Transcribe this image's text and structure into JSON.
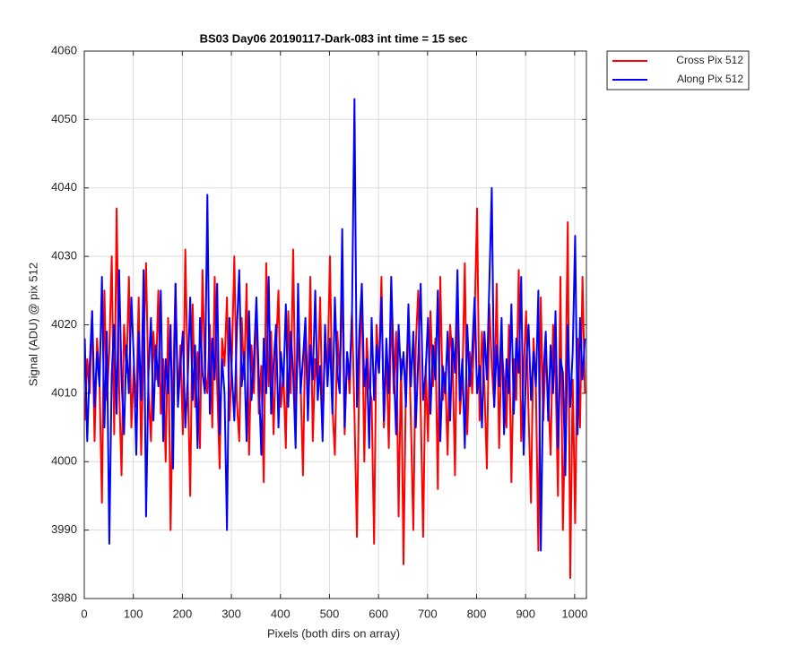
{
  "chart_data": {
    "type": "line",
    "title": "BS03 Day06 20190117-Dark-083 int time = 15 sec",
    "xlabel": "Pixels (both dirs on array)",
    "ylabel": "Signal (ADU) @ pix 512",
    "xlim": [
      0,
      1024
    ],
    "ylim": [
      3980,
      4060
    ],
    "xticks": [
      0,
      100,
      200,
      300,
      400,
      500,
      600,
      700,
      800,
      900,
      1000
    ],
    "yticks": [
      3980,
      3990,
      4000,
      4010,
      4020,
      4030,
      4040,
      4050,
      4060
    ],
    "grid": true,
    "legend": "northeastoutside",
    "x": [
      1,
      6,
      11,
      16,
      21,
      26,
      31,
      36,
      41,
      46,
      51,
      56,
      61,
      66,
      71,
      76,
      81,
      86,
      91,
      96,
      101,
      106,
      111,
      116,
      121,
      126,
      131,
      136,
      141,
      146,
      151,
      156,
      161,
      166,
      171,
      176,
      181,
      186,
      191,
      196,
      201,
      206,
      211,
      216,
      221,
      226,
      231,
      236,
      241,
      246,
      251,
      256,
      261,
      266,
      271,
      276,
      281,
      286,
      291,
      296,
      301,
      306,
      311,
      316,
      321,
      326,
      331,
      336,
      341,
      346,
      351,
      356,
      361,
      366,
      371,
      376,
      381,
      386,
      391,
      396,
      401,
      406,
      411,
      416,
      421,
      426,
      431,
      436,
      441,
      446,
      451,
      456,
      461,
      466,
      471,
      476,
      481,
      486,
      491,
      496,
      501,
      506,
      511,
      516,
      521,
      526,
      531,
      536,
      541,
      546,
      551,
      556,
      561,
      566,
      571,
      576,
      581,
      586,
      591,
      596,
      601,
      606,
      611,
      616,
      621,
      626,
      631,
      636,
      641,
      646,
      651,
      656,
      661,
      666,
      671,
      676,
      681,
      686,
      691,
      696,
      701,
      706,
      711,
      716,
      721,
      726,
      731,
      736,
      741,
      746,
      751,
      756,
      761,
      766,
      771,
      776,
      781,
      786,
      791,
      796,
      801,
      806,
      811,
      816,
      821,
      826,
      831,
      836,
      841,
      846,
      851,
      856,
      861,
      866,
      871,
      876,
      881,
      886,
      891,
      896,
      901,
      906,
      911,
      916,
      921,
      926,
      931,
      936,
      941,
      946,
      951,
      956,
      961,
      966,
      971,
      976,
      981,
      986,
      991,
      996,
      1001,
      1006,
      1011,
      1016,
      1021
    ],
    "series": [
      {
        "name": "Cross Pix 512",
        "color": "#ff0000",
        "values": [
          4006,
          4015,
          4010,
          4022,
          4003,
          4018,
          4012,
          3994,
          4025,
          4009,
          4016,
          4030,
          4004,
          4037,
          4011,
          3998,
          4020,
          4013,
          4027,
          4005,
          4014,
          4008,
          4024,
          4001,
          4017,
          4029,
          4010,
          4003,
          4019,
          4012,
          4025,
          4007,
          4015,
          4000,
          4021,
          3990,
          4011,
          4026,
          4009,
          4017,
          4004,
          4031,
          4012,
          3995,
          4023,
          4008,
          4016,
          4002,
          4028,
          4013,
          4010,
          4020,
          4005,
          4027,
          4011,
          3999,
          4018,
          4014,
          4024,
          4006,
          4015,
          4030,
          4009,
          4003,
          4021,
          4012,
          4026,
          4001,
          4017,
          4010,
          4023,
          4007,
          4014,
          3997,
          4029,
          4011,
          4019,
          4004,
          4016,
          4025,
          4008,
          4013,
          4002,
          4022,
          4010,
          4031,
          4006,
          4018,
          4012,
          3998,
          4020,
          4009,
          4027,
          4003,
          4015,
          4011,
          4024,
          4005,
          4017,
          4013,
          4030,
          4008,
          4001,
          4019,
          4012,
          4026,
          4004,
          4016,
          4010,
          4022,
          4007,
          3989,
          4014,
          4025,
          4000,
          4018,
          4011,
          4009,
          3988,
          4020,
          4013,
          4027,
          4005,
          4016,
          4002,
          4023,
          4010,
          4019,
          3992,
          4015,
          3985,
          4012,
          4021,
          4006,
          3990,
          4017,
          4025,
          4008,
          3989,
          4014,
          4003,
          4022,
          4011,
          4018,
          3996,
          4027,
          4009,
          4013,
          4001,
          4020,
          4015,
          3998,
          4024,
          4007,
          4012,
          4029,
          4004,
          4016,
          4010,
          4021,
          4037,
          4006,
          4019,
          4011,
          3999,
          4023,
          4014,
          4008,
          4026,
          4002,
          4017,
          4012,
          4005,
          4020,
          3997,
          4015,
          4009,
          4028,
          4003,
          4013,
          4022,
          4007,
          3994,
          4018,
          4011,
          3987,
          4024,
          4006,
          4016,
          4010,
          4001,
          4020,
          4013,
          3995,
          4027,
          3990,
          4008,
          4035,
          3983,
          4012,
          3991,
          4018,
          4005,
          4027,
          4010
        ]
      },
      {
        "name": "Along Pix 512",
        "color": "#0000ff",
        "values": [
          4018,
          4003,
          4014,
          4022,
          4008,
          4016,
          4011,
          4027,
          4005,
          4019,
          3988,
          4013,
          4020,
          4007,
          4028,
          4012,
          4004,
          4017,
          4010,
          4024,
          4015,
          4001,
          4019,
          4009,
          4028,
          3992,
          4013,
          4021,
          4006,
          4017,
          4011,
          4025,
          4003,
          4015,
          4010,
          4020,
          3999,
          4026,
          4008,
          4014,
          4019,
          4005,
          4012,
          4024,
          4009,
          4017,
          4002,
          4021,
          4013,
          4010,
          4039,
          4007,
          4018,
          4012,
          4026,
          4004,
          4015,
          4010,
          3990,
          4021,
          4013,
          4006,
          4019,
          4028,
          4011,
          4016,
          4003,
          4022,
          4009,
          4015,
          4024,
          4012,
          4001,
          4018,
          4010,
          4027,
          4007,
          4014,
          4020,
          4005,
          4016,
          4011,
          4023,
          4008,
          4019,
          4013,
          4002,
          4026,
          4010,
          4015,
          4021,
          4006,
          4017,
          4012,
          4025,
          4009,
          4014,
          4003,
          4020,
          4011,
          4018,
          4007,
          4024,
          4013,
          4010,
          4034,
          4005,
          4016,
          4012,
          4022,
          4053,
          4008,
          4019,
          4026,
          4011,
          4015,
          4002,
          4021,
          4009,
          4017,
          4013,
          4024,
          4006,
          4018,
          4010,
          4027,
          4014,
          4004,
          4020,
          4012,
          4016,
          4008,
          4023,
          4011,
          4019,
          4005,
          4015,
          4026,
          4009,
          4013,
          4021,
          4007,
          4017,
          4012,
          4025,
          4003,
          4014,
          4010,
          4019,
          4006,
          4018,
          4013,
          4028,
          4009,
          4015,
          4002,
          4020,
          4011,
          4016,
          4024,
          4010,
          4014,
          4005,
          4019,
          4012,
          4026,
          4040,
          4008,
          4017,
          4011,
          4021,
          4004,
          4015,
          4010,
          4023,
          4007,
          4018,
          4013,
          4027,
          4001,
          4014,
          4020,
          4009,
          4016,
          4011,
          4025,
          3987,
          4012,
          4019,
          4006,
          4017,
          4010,
          4022,
          4002,
          4015,
          4013,
          3998,
          4020,
          4008,
          4016,
          4033,
          4004,
          4021,
          4012,
          4018
        ]
      }
    ]
  }
}
